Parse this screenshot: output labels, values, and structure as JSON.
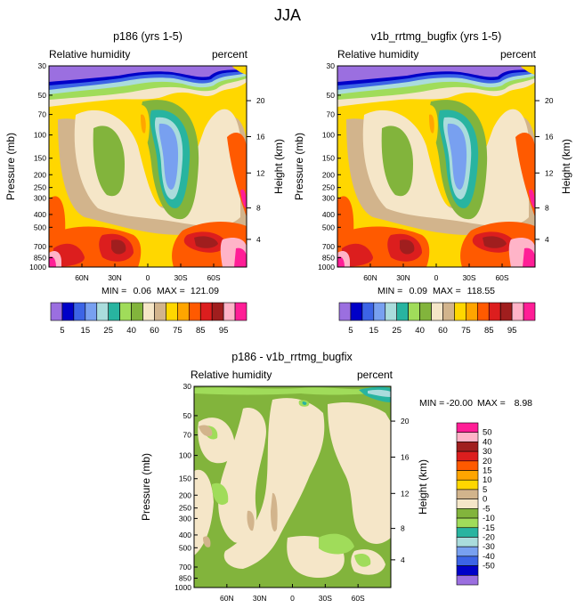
{
  "figure_title": "JJA",
  "chart_data": [
    {
      "type": "heatmap",
      "title": "p186 (yrs 1-5)",
      "left_label": "Relative humidity",
      "right_label": "percent",
      "ylabel": "Pressure (mb)",
      "y2label": "Height (km)",
      "min_label": "MIN =",
      "min_value": "0.06",
      "max_label": "MAX =",
      "max_value": "121.09",
      "ylim": [
        1000,
        30
      ],
      "xlim": [
        90,
        -90
      ]
    },
    {
      "type": "heatmap",
      "title": "v1b_rrtmg_bugfix (yrs 1-5)",
      "left_label": "Relative humidity",
      "right_label": "percent",
      "ylabel": "Pressure (mb)",
      "y2label": "Height (km)",
      "min_label": "MIN =",
      "min_value": "0.09",
      "max_label": "MAX =",
      "max_value": "118.55",
      "ylim": [
        1000,
        30
      ],
      "xlim": [
        90,
        -90
      ]
    },
    {
      "type": "heatmap",
      "title": "p186 - v1b_rrtmg_bugfix",
      "left_label": "Relative humidity",
      "right_label": "percent",
      "ylabel": "Pressure (mb)",
      "y2label": "Height (km)",
      "min_label": "MIN =",
      "min_value": "-20.00",
      "max_label": "MAX =",
      "max_value": "8.98",
      "ylim": [
        1000,
        30
      ],
      "xlim": [
        90,
        -90
      ]
    }
  ],
  "axes": {
    "pressure_ticks": [
      "30",
      "50",
      "70",
      "100",
      "150",
      "200",
      "250",
      "300",
      "400",
      "500",
      "700",
      "850",
      "1000"
    ],
    "pressure_values": [
      30,
      50,
      70,
      100,
      150,
      200,
      250,
      300,
      400,
      500,
      700,
      850,
      1000
    ],
    "height_ticks": [
      "20",
      "16",
      "12",
      "8",
      "4"
    ],
    "height_pressure_values": [
      55,
      103,
      194,
      357,
      617
    ],
    "lat_ticks": [
      "60N",
      "30N",
      "0",
      "30S",
      "60S"
    ],
    "lat_values": [
      60,
      30,
      0,
      -30,
      -60
    ]
  },
  "colorbar_abs": {
    "labels": [
      "5",
      "15",
      "25",
      "40",
      "60",
      "75",
      "85",
      "95"
    ],
    "colors": [
      "#9b6fe0",
      "#0000c8",
      "#3c64e6",
      "#78a0f0",
      "#aadcdc",
      "#28b4a0",
      "#a0dc5a",
      "#82b43c",
      "#f5e6c8",
      "#d2b48c",
      "#ffd700",
      "#ffa500",
      "#ff5a00",
      "#dc1e1e",
      "#a01e1e",
      "#ffb4c8",
      "#ff1e96"
    ]
  },
  "colorbar_diff": {
    "labels": [
      "50",
      "40",
      "30",
      "20",
      "15",
      "10",
      "5",
      "0",
      "-5",
      "-10",
      "-15",
      "-20",
      "-30",
      "-40",
      "-50"
    ],
    "colors": [
      "#ff1e96",
      "#ffb4c8",
      "#a01e1e",
      "#dc1e1e",
      "#ff5a00",
      "#ffa500",
      "#ffd700",
      "#d2b48c",
      "#f5e6c8",
      "#82b43c",
      "#a0dc5a",
      "#28b4a0",
      "#aadcdc",
      "#78a0f0",
      "#3c64e6",
      "#0000c8",
      "#9b6fe0"
    ]
  }
}
